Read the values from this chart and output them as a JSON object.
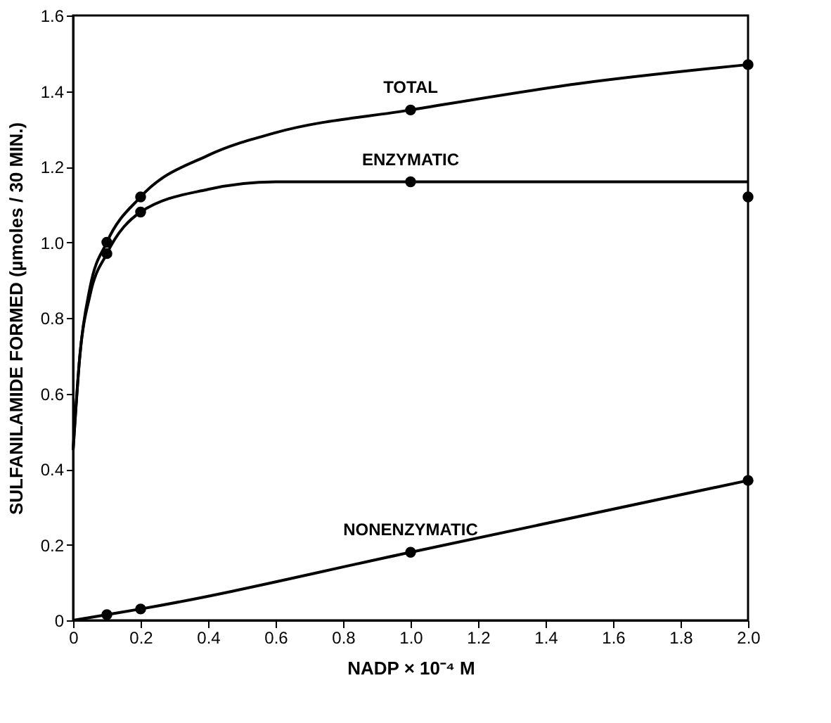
{
  "chart_data": {
    "type": "line",
    "xlabel": "NADP × 10⁻⁴ M",
    "ylabel": "SULFANILAMIDE FORMED (µmoles / 30 MIN.)",
    "xlim": [
      0,
      2.0
    ],
    "ylim": [
      0,
      1.6
    ],
    "xticks": [
      0,
      {
        "value": 0.2,
        "label": "0.2"
      },
      {
        "value": 0.4,
        "label": "0.4"
      },
      {
        "value": 0.6,
        "label": "0.6"
      },
      {
        "value": 0.8,
        "label": "0.8"
      },
      {
        "value": 1.0,
        "label": "1.0"
      },
      {
        "value": 1.2,
        "label": "1.2"
      },
      {
        "value": 1.4,
        "label": "1.4"
      },
      {
        "value": 1.6,
        "label": "1.6"
      },
      {
        "value": 1.8,
        "label": "1.8"
      },
      {
        "value": 2.0,
        "label": "2.0"
      }
    ],
    "yticks": [
      0,
      {
        "value": 0.2,
        "label": "0.2"
      },
      {
        "value": 0.4,
        "label": "0.4"
      },
      {
        "value": 0.6,
        "label": "0.6"
      },
      {
        "value": 0.8,
        "label": "0.8"
      },
      {
        "value": 1.0,
        "label": "1.0"
      },
      {
        "value": 1.2,
        "label": "1.2"
      },
      {
        "value": 1.4,
        "label": "1.4"
      },
      {
        "value": 1.6,
        "label": "1.6"
      }
    ],
    "grid": false,
    "line_style": "solid",
    "marker": "none",
    "series": [
      {
        "name": "TOTAL",
        "color": "#000000",
        "x": [
          0,
          0.02,
          0.05,
          0.1,
          0.2,
          0.4,
          0.6,
          1.0,
          1.5,
          2.0
        ],
        "values": [
          0.45,
          0.7,
          0.88,
          1.0,
          1.12,
          1.23,
          1.29,
          1.35,
          1.42,
          1.47
        ]
      },
      {
        "name": "ENZYMATIC",
        "color": "#000000",
        "x": [
          0,
          0.02,
          0.05,
          0.1,
          0.2,
          0.4,
          0.6,
          1.0,
          2.0
        ],
        "values": [
          0.45,
          0.7,
          0.86,
          0.97,
          1.08,
          1.14,
          1.16,
          1.16,
          1.16
        ]
      },
      {
        "name": "NONENZYMATIC",
        "color": "#000000",
        "x": [
          0,
          0.1,
          0.2,
          1.0,
          2.0
        ],
        "values": [
          0,
          0.015,
          0.03,
          0.18,
          0.37
        ]
      },
      {
        "type": "scatter",
        "marker": "circle",
        "color": "#000000",
        "x": [
          0.1,
          0.2,
          1.0,
          2.0
        ],
        "values": [
          1.0,
          1.12,
          1.35,
          1.47
        ]
      },
      {
        "type": "scatter",
        "marker": "circle",
        "color": "#000000",
        "x": [
          0.1,
          0.2,
          1.0,
          2.0
        ],
        "values": [
          0.97,
          1.08,
          1.16,
          1.12
        ]
      },
      {
        "type": "scatter",
        "marker": "circle",
        "color": "#000000",
        "x": [
          0.1,
          0.2,
          1.0,
          2.0
        ],
        "values": [
          0.015,
          0.03,
          0.18,
          0.37
        ]
      }
    ]
  }
}
